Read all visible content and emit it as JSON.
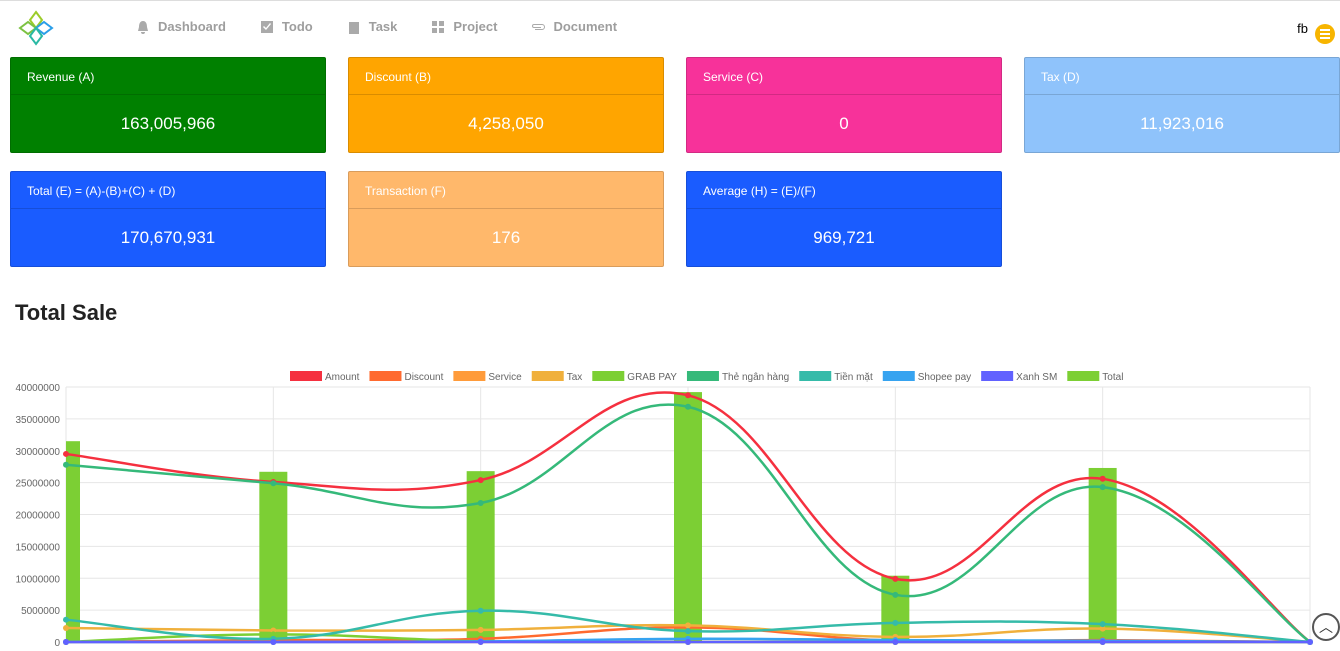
{
  "nav": {
    "items": [
      {
        "label": "Dashboard",
        "icon": "bell-icon"
      },
      {
        "label": "Todo",
        "icon": "checkbox-icon"
      },
      {
        "label": "Task",
        "icon": "clipboard-icon"
      },
      {
        "label": "Project",
        "icon": "grid-icon"
      },
      {
        "label": "Document",
        "icon": "paperclip-icon"
      }
    ],
    "user": "fb"
  },
  "cards": [
    {
      "label": "Revenue (A)",
      "value": "163,005,966",
      "color": "#008000"
    },
    {
      "label": "Discount (B)",
      "value": "4,258,050",
      "color": "#ffa500"
    },
    {
      "label": "Service (C)",
      "value": "0",
      "color": "#f7329a"
    },
    {
      "label": "Tax (D)",
      "value": "11,923,016",
      "color": "#8fc3fb"
    },
    {
      "label": "Total (E) = (A)-(B)+(C) + (D)",
      "value": "170,670,931",
      "color": "#1a5cff"
    },
    {
      "label": "Transaction (F)",
      "value": "176",
      "color": "#ffb86b"
    },
    {
      "label": "Average (H) = (E)/(F)",
      "value": "969,721",
      "color": "#1a5cff"
    }
  ],
  "section_title": "Total Sale",
  "chart_data": {
    "type": "line",
    "ylim": [
      0,
      40000000
    ],
    "yticks": [
      0,
      5000000,
      10000000,
      15000000,
      20000000,
      25000000,
      30000000,
      35000000,
      40000000
    ],
    "legend_position": "top",
    "series": [
      {
        "name": "Amount",
        "color": "#f5303f",
        "values": [
          29500000,
          25100000,
          25400000,
          38700000,
          9900000,
          25600000,
          0
        ]
      },
      {
        "name": "Discount",
        "color": "#ff6a2f",
        "values": [
          0,
          300000,
          500000,
          2300000,
          200000,
          300000,
          0
        ]
      },
      {
        "name": "Service",
        "color": "#ff9b3a",
        "values": [
          0,
          0,
          0,
          0,
          0,
          0,
          0
        ]
      },
      {
        "name": "Tax",
        "color": "#f0b03c",
        "values": [
          2200000,
          1800000,
          1900000,
          2600000,
          800000,
          2100000,
          0
        ]
      },
      {
        "name": "GRAB PAY",
        "color": "#7ccf34",
        "values": [
          0,
          1200000,
          100000,
          0,
          0,
          0,
          0
        ]
      },
      {
        "name": "Thẻ ngân hàng",
        "color": "#35b97a",
        "values": [
          27800000,
          24900000,
          21800000,
          36900000,
          7400000,
          24300000,
          0
        ]
      },
      {
        "name": "Tiền mặt",
        "color": "#35bba9",
        "values": [
          3500000,
          500000,
          4900000,
          1700000,
          3000000,
          2800000,
          0
        ]
      },
      {
        "name": "Shopee pay",
        "color": "#36a3f0",
        "values": [
          0,
          0,
          100000,
          500000,
          300000,
          200000,
          0
        ]
      },
      {
        "name": "Xanh SM",
        "color": "#6161ff",
        "values": [
          0,
          0,
          0,
          0,
          0,
          0,
          0
        ]
      },
      {
        "name": "Total",
        "color": "#7ccf34",
        "type": "bar",
        "values": [
          31500000,
          26700000,
          26800000,
          39200000,
          10400000,
          27300000,
          0
        ]
      }
    ]
  }
}
